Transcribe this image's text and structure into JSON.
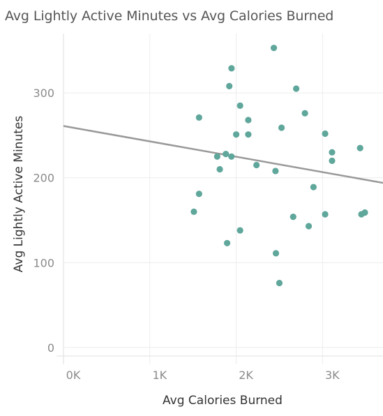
{
  "chart_data": {
    "type": "scatter",
    "title": "Avg Lightly Active Minutes vs Avg Calories Burned",
    "xlabel": "Avg Calories Burned",
    "ylabel": "Avg Lightly Active Minutes",
    "xlim": [
      0,
      3700
    ],
    "ylim": [
      -10,
      370
    ],
    "x_ticks": [
      {
        "value": 0,
        "label": "0K"
      },
      {
        "value": 1000,
        "label": "1K"
      },
      {
        "value": 2000,
        "label": "2K"
      },
      {
        "value": 3000,
        "label": "3K"
      }
    ],
    "y_ticks": [
      {
        "value": 0,
        "label": "0"
      },
      {
        "value": 100,
        "label": "100"
      },
      {
        "value": 200,
        "label": "200"
      },
      {
        "value": 300,
        "label": "300"
      }
    ],
    "grid": true,
    "point_color": "#5fa69b",
    "trend_color": "#999999",
    "points": [
      {
        "x": 2436,
        "y": 353
      },
      {
        "x": 1946,
        "y": 329
      },
      {
        "x": 1920,
        "y": 308
      },
      {
        "x": 2695,
        "y": 305
      },
      {
        "x": 2045,
        "y": 285
      },
      {
        "x": 2796,
        "y": 276
      },
      {
        "x": 1570,
        "y": 271
      },
      {
        "x": 2140,
        "y": 268
      },
      {
        "x": 2525,
        "y": 259
      },
      {
        "x": 2000,
        "y": 251
      },
      {
        "x": 2140,
        "y": 251
      },
      {
        "x": 3030,
        "y": 252
      },
      {
        "x": 3435,
        "y": 235
      },
      {
        "x": 3110,
        "y": 230
      },
      {
        "x": 1880,
        "y": 228
      },
      {
        "x": 1780,
        "y": 225
      },
      {
        "x": 1945,
        "y": 225
      },
      {
        "x": 3110,
        "y": 220
      },
      {
        "x": 2235,
        "y": 215
      },
      {
        "x": 1810,
        "y": 210
      },
      {
        "x": 2455,
        "y": 208
      },
      {
        "x": 2895,
        "y": 189
      },
      {
        "x": 1570,
        "y": 181
      },
      {
        "x": 1510,
        "y": 160
      },
      {
        "x": 3490,
        "y": 159
      },
      {
        "x": 3030,
        "y": 157
      },
      {
        "x": 3450,
        "y": 157
      },
      {
        "x": 2660,
        "y": 154
      },
      {
        "x": 2840,
        "y": 143
      },
      {
        "x": 2045,
        "y": 138
      },
      {
        "x": 1895,
        "y": 123
      },
      {
        "x": 2460,
        "y": 111
      },
      {
        "x": 2500,
        "y": 76
      }
    ],
    "trend_line": {
      "x": [
        0,
        3700
      ],
      "y": [
        261,
        194
      ]
    }
  }
}
